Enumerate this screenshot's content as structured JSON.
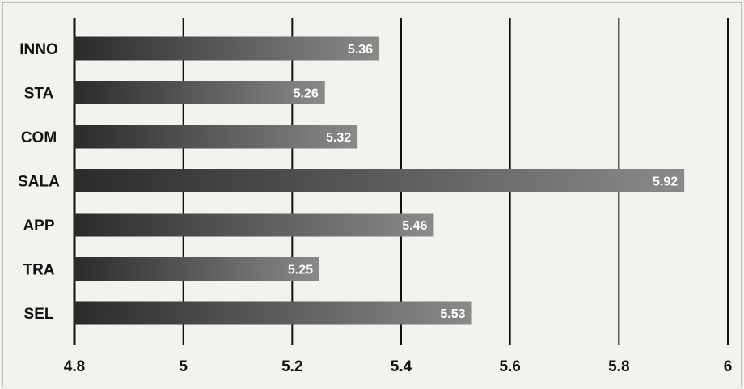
{
  "chart_data": {
    "type": "bar",
    "orientation": "horizontal",
    "categories": [
      "INNO",
      "STA",
      "COM",
      "SALA",
      "APP",
      "TRA",
      "SEL"
    ],
    "values": [
      5.36,
      5.26,
      5.32,
      5.92,
      5.46,
      5.25,
      5.53
    ],
    "value_labels": [
      "5.36",
      "5.26",
      "5.32",
      "5.92",
      "5.46",
      "5.25",
      "5.53"
    ],
    "x_ticks": [
      "4.8",
      "5",
      "5.2",
      "5.4",
      "5.6",
      "5.8",
      "6"
    ],
    "xlim": [
      4.8,
      6
    ],
    "grid": true,
    "legend": "none",
    "colors": {
      "bar_dark": "#2b2b2b",
      "bar_light": "#8a8a8a",
      "gridline": "#111111",
      "value_label": "#ffffff"
    }
  }
}
